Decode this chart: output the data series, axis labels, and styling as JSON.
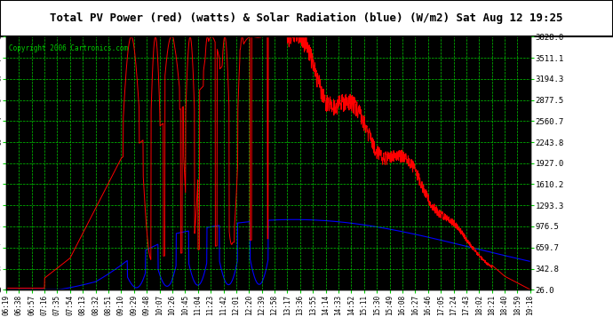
{
  "title": "Total PV Power (red) (watts) & Solar Radiation (blue) (W/m2) Sat Aug 12 19:25",
  "copyright": "Copyright 2006 Cartronics.com",
  "yticks": [
    26.0,
    342.8,
    659.7,
    976.5,
    1293.3,
    1610.2,
    1927.0,
    2243.8,
    2560.7,
    2877.5,
    3194.3,
    3511.1,
    3828.0
  ],
  "ymin": 26.0,
  "ymax": 3828.0,
  "grid_color": "#00cc00",
  "red_color": "#ff0000",
  "blue_color": "#0000ff",
  "outer_bg": "#ffffff",
  "plot_bg": "#000000",
  "xtick_labels": [
    "06:19",
    "06:38",
    "06:57",
    "07:16",
    "07:35",
    "07:54",
    "08:13",
    "08:32",
    "08:51",
    "09:10",
    "09:29",
    "09:48",
    "10:07",
    "10:26",
    "10:45",
    "11:04",
    "11:23",
    "11:42",
    "12:01",
    "12:20",
    "12:39",
    "12:58",
    "13:17",
    "13:36",
    "13:55",
    "14:14",
    "14:33",
    "14:52",
    "15:11",
    "15:30",
    "15:49",
    "16:08",
    "16:27",
    "16:46",
    "17:05",
    "17:24",
    "17:43",
    "18:02",
    "18:21",
    "18:40",
    "18:59",
    "19:18"
  ]
}
